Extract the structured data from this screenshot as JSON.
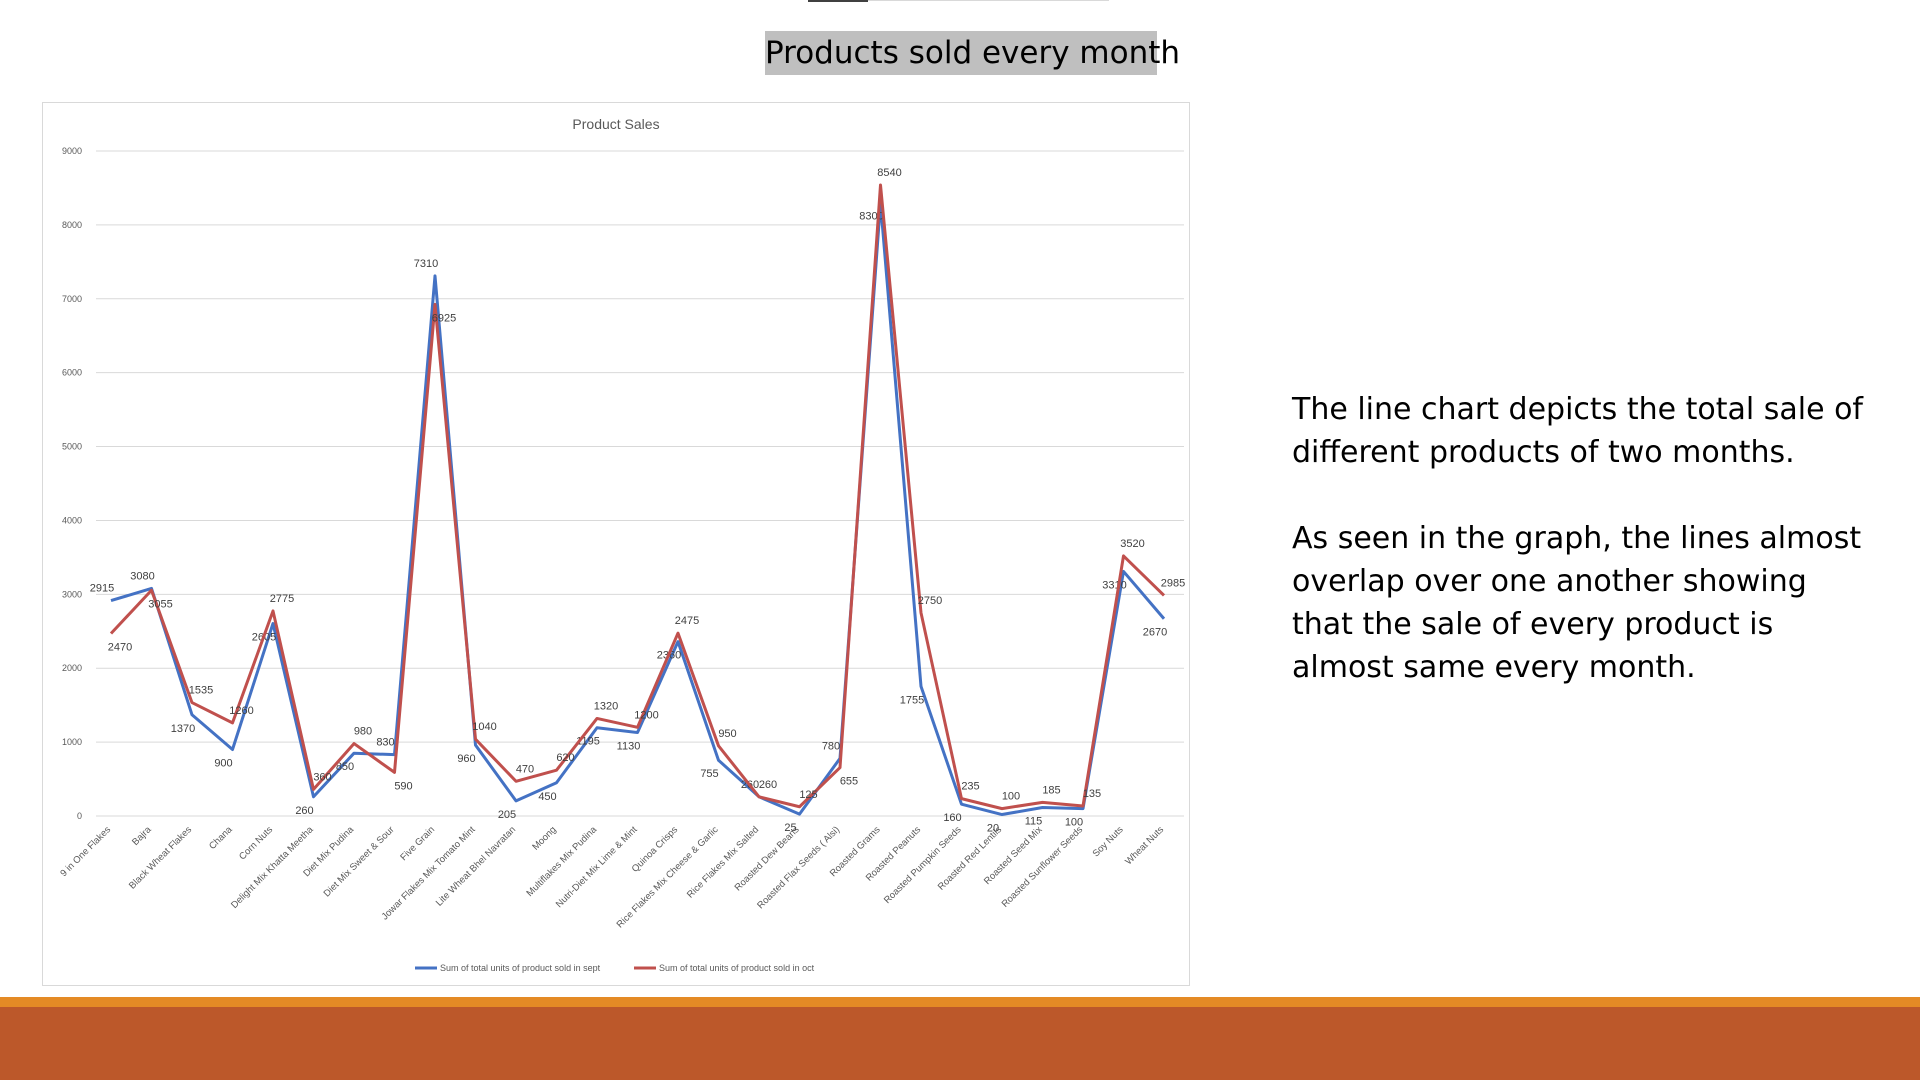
{
  "slide": {
    "title": "Products sold every month",
    "paragraphs": [
      "The line chart depicts the total sale of different products of two months.",
      "As seen in the graph, the lines almost overlap over one another showing that the sale of every product is almost same every month."
    ]
  },
  "colors": {
    "series_sept": "#4472c4",
    "series_oct": "#c0504d",
    "footer": "#bc582a",
    "footer_accent": "#e48a25"
  },
  "chart_data": {
    "type": "line",
    "title": "Product Sales",
    "xlabel": "",
    "ylabel": "",
    "ylim": [
      0,
      9000
    ],
    "yticks": [
      0,
      1000,
      2000,
      3000,
      4000,
      5000,
      6000,
      7000,
      8000,
      9000
    ],
    "grid": true,
    "legend": "bottom",
    "categories": [
      "9 in One Flakes",
      "Bajra",
      "Black Wheat Flakes",
      "Chana",
      "Corn Nuts",
      "Delight Mix Khatta Meetha",
      "Diet Mix Pudina",
      "Diet Mix Sweet & Sour",
      "Five Grain",
      "Jowar Flakes Mix Tomato Mint",
      "Lite Wheat Bhel Navratan",
      "Moong",
      "Multiflakes Mix Pudina",
      "Nutri-Diet Mix Lime & Mint",
      "Quinoa Crisps",
      "Rice Flakes Mix Cheese & Garlic",
      "Rice Flakes Mix Salted",
      "Roasted Dew Beans",
      "Roasted Flax Seeds ( Alsi)",
      "Roasted Grams",
      "Roasted Peanuts",
      "Roasted Pumpkin Seeds",
      "Roasted Red Lentils",
      "Roasted Seed Mix",
      "Roasted Sunflower Seeds",
      "Soy Nuts",
      "Wheat Nuts"
    ],
    "series": [
      {
        "name": "Sum of total units of product sold in sept",
        "values": [
          2915,
          3080,
          1370,
          900,
          2605,
          260,
          850,
          830,
          7310,
          960,
          205,
          450,
          1195,
          1130,
          2360,
          755,
          260,
          25,
          780,
          8300,
          1755,
          160,
          20,
          115,
          100,
          3310,
          2670
        ]
      },
      {
        "name": "Sum of total units of product sold in oct",
        "values": [
          2470,
          3055,
          1535,
          1260,
          2775,
          360,
          980,
          590,
          6925,
          1040,
          470,
          620,
          1320,
          1200,
          2475,
          950,
          260,
          125,
          655,
          8540,
          2750,
          235,
          100,
          185,
          135,
          3520,
          2985
        ]
      }
    ]
  }
}
